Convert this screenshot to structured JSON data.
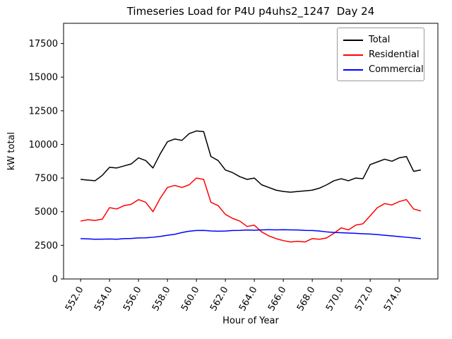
{
  "title": "Timeseries Load for P4U p4uhs2_1247  Day 24",
  "chart_data": {
    "type": "line",
    "title": "Timeseries Load for P4U p4uhs2_1247  Day 24",
    "xlabel": "Hour of Year",
    "ylabel": "kW total",
    "grid": false,
    "legend_position": "upper right",
    "xlim": [
      550.825,
      576.675
    ],
    "ylim": [
      0,
      19000
    ],
    "x_ticks": [
      552.0,
      554.0,
      556.0,
      558.0,
      560.0,
      562.0,
      564.0,
      566.0,
      568.0,
      570.0,
      572.0,
      574.0
    ],
    "y_ticks": [
      0,
      2500,
      5000,
      7500,
      10000,
      12500,
      15000,
      17500
    ],
    "x": [
      552.0,
      552.5,
      553.0,
      553.5,
      554.0,
      554.5,
      555.0,
      555.5,
      556.0,
      556.5,
      557.0,
      557.5,
      558.0,
      558.5,
      559.0,
      559.5,
      560.0,
      560.5,
      561.0,
      561.5,
      562.0,
      562.5,
      563.0,
      563.5,
      564.0,
      564.5,
      565.0,
      565.5,
      566.0,
      566.5,
      567.0,
      567.5,
      568.0,
      568.5,
      569.0,
      569.5,
      570.0,
      570.5,
      571.0,
      571.5,
      572.0,
      572.5,
      573.0,
      573.5,
      574.0,
      574.5,
      575.0,
      575.5
    ],
    "series": [
      {
        "name": "Total",
        "color": "#000000",
        "values": [
          7400,
          7350,
          7300,
          7700,
          8300,
          8250,
          8400,
          8550,
          9000,
          8800,
          8250,
          9300,
          10200,
          10400,
          10300,
          10800,
          11000,
          10950,
          9100,
          8800,
          8100,
          7900,
          7600,
          7400,
          7500,
          7000,
          6800,
          6600,
          6500,
          6450,
          6500,
          6550,
          6600,
          6750,
          7000,
          7300,
          7450,
          7300,
          7500,
          7450,
          8500,
          8700,
          8900,
          8750,
          9000,
          9100,
          8000,
          8100
        ]
      },
      {
        "name": "Residential",
        "color": "#ff0000",
        "values": [
          4300,
          4400,
          4350,
          4450,
          5300,
          5200,
          5450,
          5550,
          5900,
          5700,
          5000,
          6000,
          6800,
          6950,
          6800,
          7000,
          7500,
          7400,
          5700,
          5450,
          4800,
          4500,
          4300,
          3900,
          4000,
          3500,
          3200,
          3000,
          2850,
          2750,
          2800,
          2750,
          3000,
          2950,
          3050,
          3400,
          3800,
          3650,
          4000,
          4100,
          4700,
          5300,
          5600,
          5500,
          5750,
          5900,
          5200,
          5050
        ]
      },
      {
        "name": "Commercial",
        "color": "#0000ff",
        "values": [
          3000,
          2980,
          2950,
          2960,
          2970,
          2950,
          3000,
          3010,
          3050,
          3060,
          3100,
          3160,
          3250,
          3320,
          3450,
          3550,
          3600,
          3610,
          3570,
          3550,
          3560,
          3600,
          3610,
          3640,
          3620,
          3650,
          3660,
          3650,
          3660,
          3650,
          3640,
          3610,
          3600,
          3560,
          3500,
          3460,
          3440,
          3410,
          3390,
          3360,
          3340,
          3300,
          3250,
          3200,
          3150,
          3100,
          3050,
          3000
        ]
      }
    ]
  }
}
